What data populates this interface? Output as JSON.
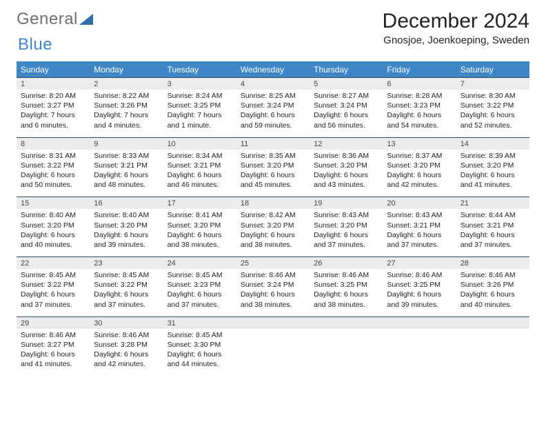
{
  "logo": {
    "word1": "General",
    "word2": "Blue",
    "triangle_color": "#2f6fa8"
  },
  "header": {
    "title": "December 2024",
    "location": "Gnosjoe, Joenkoeping, Sweden"
  },
  "colors": {
    "header_bg": "#3f86c7",
    "numrow_bg": "#ececec",
    "rule": "#2b4a66"
  },
  "daynames": [
    "Sunday",
    "Monday",
    "Tuesday",
    "Wednesday",
    "Thursday",
    "Friday",
    "Saturday"
  ],
  "weeks": [
    {
      "nums": [
        "1",
        "2",
        "3",
        "4",
        "5",
        "6",
        "7"
      ],
      "cells": [
        {
          "sunrise": "8:20 AM",
          "sunset": "3:27 PM",
          "dl": "7 hours and 6 minutes."
        },
        {
          "sunrise": "8:22 AM",
          "sunset": "3:26 PM",
          "dl": "7 hours and 4 minutes."
        },
        {
          "sunrise": "8:24 AM",
          "sunset": "3:25 PM",
          "dl": "7 hours and 1 minute."
        },
        {
          "sunrise": "8:25 AM",
          "sunset": "3:24 PM",
          "dl": "6 hours and 59 minutes."
        },
        {
          "sunrise": "8:27 AM",
          "sunset": "3:24 PM",
          "dl": "6 hours and 56 minutes."
        },
        {
          "sunrise": "8:28 AM",
          "sunset": "3:23 PM",
          "dl": "6 hours and 54 minutes."
        },
        {
          "sunrise": "8:30 AM",
          "sunset": "3:22 PM",
          "dl": "6 hours and 52 minutes."
        }
      ]
    },
    {
      "nums": [
        "8",
        "9",
        "10",
        "11",
        "12",
        "13",
        "14"
      ],
      "cells": [
        {
          "sunrise": "8:31 AM",
          "sunset": "3:22 PM",
          "dl": "6 hours and 50 minutes."
        },
        {
          "sunrise": "8:33 AM",
          "sunset": "3:21 PM",
          "dl": "6 hours and 48 minutes."
        },
        {
          "sunrise": "8:34 AM",
          "sunset": "3:21 PM",
          "dl": "6 hours and 46 minutes."
        },
        {
          "sunrise": "8:35 AM",
          "sunset": "3:20 PM",
          "dl": "6 hours and 45 minutes."
        },
        {
          "sunrise": "8:36 AM",
          "sunset": "3:20 PM",
          "dl": "6 hours and 43 minutes."
        },
        {
          "sunrise": "8:37 AM",
          "sunset": "3:20 PM",
          "dl": "6 hours and 42 minutes."
        },
        {
          "sunrise": "8:39 AM",
          "sunset": "3:20 PM",
          "dl": "6 hours and 41 minutes."
        }
      ]
    },
    {
      "nums": [
        "15",
        "16",
        "17",
        "18",
        "19",
        "20",
        "21"
      ],
      "cells": [
        {
          "sunrise": "8:40 AM",
          "sunset": "3:20 PM",
          "dl": "6 hours and 40 minutes."
        },
        {
          "sunrise": "8:40 AM",
          "sunset": "3:20 PM",
          "dl": "6 hours and 39 minutes."
        },
        {
          "sunrise": "8:41 AM",
          "sunset": "3:20 PM",
          "dl": "6 hours and 38 minutes."
        },
        {
          "sunrise": "8:42 AM",
          "sunset": "3:20 PM",
          "dl": "6 hours and 38 minutes."
        },
        {
          "sunrise": "8:43 AM",
          "sunset": "3:20 PM",
          "dl": "6 hours and 37 minutes."
        },
        {
          "sunrise": "8:43 AM",
          "sunset": "3:21 PM",
          "dl": "6 hours and 37 minutes."
        },
        {
          "sunrise": "8:44 AM",
          "sunset": "3:21 PM",
          "dl": "6 hours and 37 minutes."
        }
      ]
    },
    {
      "nums": [
        "22",
        "23",
        "24",
        "25",
        "26",
        "27",
        "28"
      ],
      "cells": [
        {
          "sunrise": "8:45 AM",
          "sunset": "3:22 PM",
          "dl": "6 hours and 37 minutes."
        },
        {
          "sunrise": "8:45 AM",
          "sunset": "3:22 PM",
          "dl": "6 hours and 37 minutes."
        },
        {
          "sunrise": "8:45 AM",
          "sunset": "3:23 PM",
          "dl": "6 hours and 37 minutes."
        },
        {
          "sunrise": "8:46 AM",
          "sunset": "3:24 PM",
          "dl": "6 hours and 38 minutes."
        },
        {
          "sunrise": "8:46 AM",
          "sunset": "3:25 PM",
          "dl": "6 hours and 38 minutes."
        },
        {
          "sunrise": "8:46 AM",
          "sunset": "3:25 PM",
          "dl": "6 hours and 39 minutes."
        },
        {
          "sunrise": "8:46 AM",
          "sunset": "3:26 PM",
          "dl": "6 hours and 40 minutes."
        }
      ]
    },
    {
      "nums": [
        "29",
        "30",
        "31",
        "",
        "",
        "",
        ""
      ],
      "cells": [
        {
          "sunrise": "8:46 AM",
          "sunset": "3:27 PM",
          "dl": "6 hours and 41 minutes."
        },
        {
          "sunrise": "8:46 AM",
          "sunset": "3:28 PM",
          "dl": "6 hours and 42 minutes."
        },
        {
          "sunrise": "8:45 AM",
          "sunset": "3:30 PM",
          "dl": "6 hours and 44 minutes."
        },
        null,
        null,
        null,
        null
      ]
    }
  ],
  "labels": {
    "sunrise": "Sunrise: ",
    "sunset": "Sunset: ",
    "daylight": "Daylight: "
  }
}
